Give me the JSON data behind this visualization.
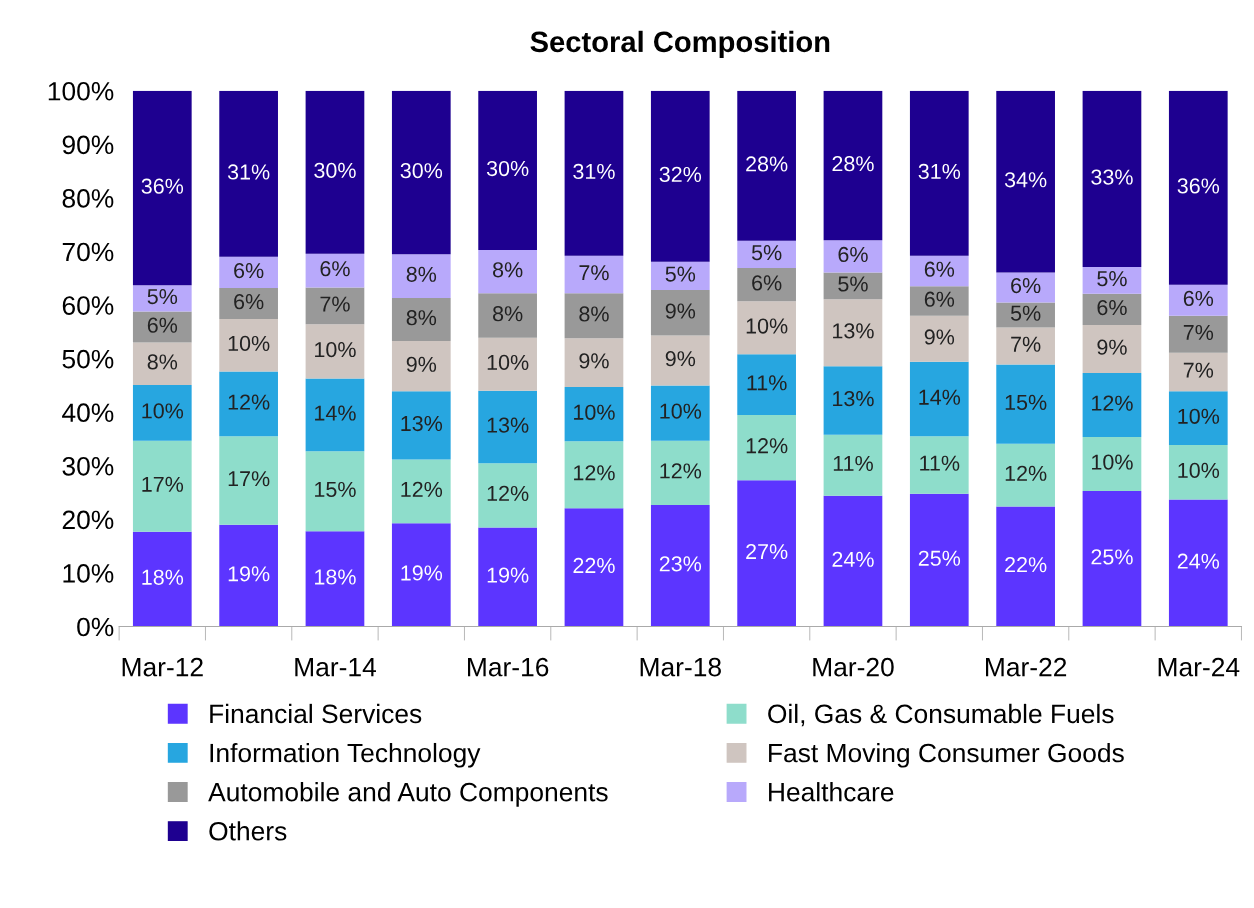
{
  "chart_data": {
    "type": "bar",
    "title": "Sectoral Composition",
    "stacked": true,
    "categories": [
      "Mar-12",
      null,
      "Mar-14",
      null,
      "Mar-16",
      null,
      "Mar-18",
      null,
      "Mar-20",
      null,
      "Mar-22",
      null,
      "Mar-24"
    ],
    "ylim": [
      0,
      100
    ],
    "yticks": [
      {
        "value": 0,
        "label": "0%"
      },
      {
        "value": 10,
        "label": "10%"
      },
      {
        "value": 20,
        "label": "20%"
      },
      {
        "value": 30,
        "label": "30%"
      },
      {
        "value": 40,
        "label": "40%"
      },
      {
        "value": 50,
        "label": "50%"
      },
      {
        "value": 60,
        "label": "60%"
      },
      {
        "value": 70,
        "label": "70%"
      },
      {
        "value": 80,
        "label": "80%"
      },
      {
        "value": 90,
        "label": "90%"
      },
      {
        "value": 100,
        "label": "100%"
      }
    ],
    "grid": false,
    "legend": "bottom",
    "series": [
      {
        "name": "Financial Services",
        "color": "#5c35ff",
        "values": [
          17.7,
          19.0,
          17.8,
          19.3,
          18.5,
          22.1,
          22.7,
          27.3,
          24.4,
          24.8,
          22.4,
          25.3,
          23.7
        ],
        "value_labels": [
          "18%",
          "19%",
          "18%",
          "19%",
          "19%",
          "22%",
          "23%",
          "27%",
          "24%",
          "25%",
          "22%",
          "25%",
          "24%"
        ]
      },
      {
        "name": "Oil, Gas & Consumable Fuels",
        "color": "#8eddcb",
        "values": [
          17.0,
          16.5,
          14.9,
          11.9,
          12.0,
          12.5,
          12.0,
          12.2,
          11.4,
          10.7,
          11.7,
          10.1,
          10.2
        ],
        "value_labels": [
          "17%",
          "17%",
          "15%",
          "12%",
          "12%",
          "12%",
          "12%",
          "12%",
          "11%",
          "11%",
          "12%",
          "10%",
          "10%"
        ]
      },
      {
        "name": "Information Technology",
        "color": "#27a6e0",
        "values": [
          10.4,
          12.1,
          13.6,
          12.7,
          13.5,
          10.1,
          10.3,
          11.3,
          12.8,
          13.9,
          14.8,
          11.9,
          10.0
        ],
        "value_labels": [
          "10%",
          "12%",
          "14%",
          "13%",
          "13%",
          "10%",
          "10%",
          "11%",
          "13%",
          "14%",
          "15%",
          "12%",
          "10%"
        ]
      },
      {
        "name": "Fast Moving Consumer Goods",
        "color": "#cfc5c0",
        "values": [
          7.9,
          9.8,
          10.1,
          9.4,
          9.9,
          9.1,
          9.3,
          9.9,
          12.5,
          8.6,
          6.9,
          9.0,
          7.2
        ],
        "value_labels": [
          "8%",
          "10%",
          "10%",
          "9%",
          "10%",
          "9%",
          "9%",
          "10%",
          "13%",
          "9%",
          "7%",
          "9%",
          "7%"
        ]
      },
      {
        "name": "Automobile and Auto Components",
        "color": "#999999",
        "values": [
          5.8,
          5.8,
          6.9,
          8.0,
          8.3,
          8.4,
          8.5,
          6.2,
          5.0,
          5.5,
          4.7,
          5.8,
          6.9
        ],
        "value_labels": [
          "6%",
          "6%",
          "7%",
          "8%",
          "8%",
          "8%",
          "9%",
          "6%",
          "5%",
          "6%",
          "5%",
          "6%",
          "7%"
        ]
      },
      {
        "name": "Healthcare",
        "color": "#b8a9fb",
        "values": [
          4.9,
          5.8,
          6.3,
          8.2,
          8.1,
          7.0,
          5.3,
          5.1,
          6.0,
          5.7,
          5.6,
          5.0,
          5.8
        ],
        "value_labels": [
          "5%",
          "6%",
          "6%",
          "8%",
          "8%",
          "7%",
          "5%",
          "5%",
          "6%",
          "6%",
          "6%",
          "5%",
          "6%"
        ]
      },
      {
        "name": "Others",
        "color": "#1e0090",
        "values": [
          36.3,
          31.0,
          30.4,
          30.5,
          29.7,
          30.8,
          31.9,
          28.0,
          27.9,
          30.8,
          33.9,
          32.9,
          36.2
        ],
        "value_labels": [
          "36%",
          "31%",
          "30%",
          "30%",
          "30%",
          "31%",
          "32%",
          "28%",
          "28%",
          "31%",
          "34%",
          "33%",
          "36%"
        ]
      }
    ]
  }
}
